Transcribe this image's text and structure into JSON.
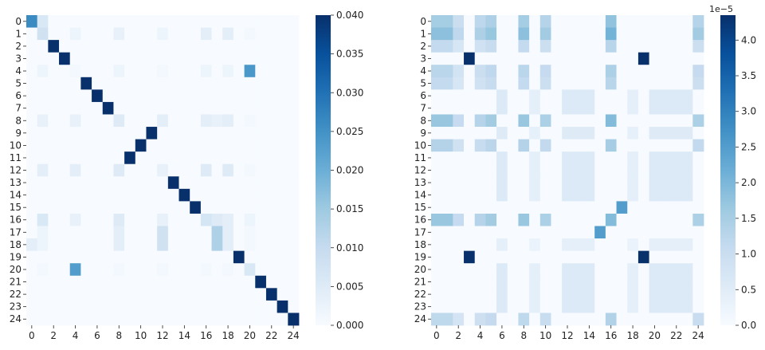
{
  "colors": {
    "low": "#f7fbff",
    "mid1": "#c6dbef",
    "mid2": "#6baed6",
    "mid3": "#2171b5",
    "high": "#08306b"
  },
  "chart_data": [
    {
      "type": "heatmap",
      "name": "left",
      "size": 25,
      "row_tick_labels": [
        "0",
        "1",
        "2",
        "3",
        "4",
        "5",
        "6",
        "7",
        "8",
        "9",
        "10",
        "11",
        "12",
        "13",
        "14",
        "15",
        "16",
        "17",
        "18",
        "19",
        "20",
        "21",
        "22",
        "23",
        "24"
      ],
      "col_tick_labels": [
        "0",
        "2",
        "4",
        "6",
        "8",
        "10",
        "12",
        "14",
        "16",
        "18",
        "20",
        "22",
        "24"
      ],
      "col_tick_indices": [
        0,
        2,
        4,
        6,
        8,
        10,
        12,
        14,
        16,
        18,
        20,
        22,
        24
      ],
      "vmin": 0,
      "vmax": 0.04,
      "colorbar_ticks": [
        0,
        0.005,
        0.01,
        0.015,
        0.02,
        0.025,
        0.03,
        0.035,
        0.04
      ],
      "colorbar_tick_labels": [
        "0.000",
        "0.005",
        "0.010",
        "0.015",
        "0.020",
        "0.025",
        "0.030",
        "0.035",
        "0.040"
      ],
      "colorbar_multiplier": "",
      "background": 0,
      "cells": [
        [
          0,
          0,
          0.026
        ],
        [
          0,
          1,
          0.006
        ],
        [
          1,
          1,
          0.008
        ],
        [
          1,
          4,
          0.002
        ],
        [
          1,
          8,
          0.003
        ],
        [
          1,
          12,
          0.002
        ],
        [
          1,
          16,
          0.004
        ],
        [
          1,
          18,
          0.004
        ],
        [
          1,
          20,
          0.001
        ],
        [
          2,
          2,
          0.04
        ],
        [
          3,
          3,
          0.04
        ],
        [
          4,
          1,
          0.002
        ],
        [
          4,
          4,
          0.001
        ],
        [
          4,
          8,
          0.002
        ],
        [
          4,
          12,
          0.001
        ],
        [
          4,
          16,
          0.002
        ],
        [
          4,
          18,
          0.002
        ],
        [
          4,
          20,
          0.024
        ],
        [
          5,
          5,
          0.04
        ],
        [
          6,
          6,
          0.04
        ],
        [
          7,
          7,
          0.04
        ],
        [
          8,
          1,
          0.003
        ],
        [
          8,
          4,
          0.003
        ],
        [
          8,
          8,
          0.005
        ],
        [
          8,
          12,
          0.004
        ],
        [
          8,
          16,
          0.004
        ],
        [
          8,
          17,
          0.003
        ],
        [
          8,
          18,
          0.004
        ],
        [
          8,
          20,
          0.001
        ],
        [
          9,
          11,
          0.04
        ],
        [
          10,
          10,
          0.04
        ],
        [
          11,
          9,
          0.04
        ],
        [
          12,
          1,
          0.004
        ],
        [
          12,
          4,
          0.004
        ],
        [
          12,
          8,
          0.005
        ],
        [
          12,
          12,
          0.003
        ],
        [
          12,
          16,
          0.005
        ],
        [
          12,
          18,
          0.005
        ],
        [
          12,
          20,
          0.001
        ],
        [
          13,
          13,
          0.04
        ],
        [
          14,
          14,
          0.04
        ],
        [
          15,
          15,
          0.04
        ],
        [
          16,
          1,
          0.006
        ],
        [
          16,
          4,
          0.003
        ],
        [
          16,
          8,
          0.005
        ],
        [
          16,
          12,
          0.003
        ],
        [
          16,
          16,
          0.007
        ],
        [
          16,
          17,
          0.005
        ],
        [
          16,
          18,
          0.004
        ],
        [
          16,
          20,
          0.002
        ],
        [
          17,
          1,
          0.002
        ],
        [
          17,
          8,
          0.004
        ],
        [
          17,
          12,
          0.008
        ],
        [
          17,
          17,
          0.013
        ],
        [
          17,
          18,
          0.004
        ],
        [
          17,
          20,
          0.001
        ],
        [
          18,
          0,
          0.004
        ],
        [
          18,
          1,
          0.002
        ],
        [
          18,
          8,
          0.004
        ],
        [
          18,
          12,
          0.008
        ],
        [
          18,
          17,
          0.013
        ],
        [
          18,
          18,
          0.004
        ],
        [
          18,
          20,
          0.001
        ],
        [
          19,
          19,
          0.04
        ],
        [
          20,
          1,
          0.001
        ],
        [
          20,
          4,
          0.023
        ],
        [
          20,
          8,
          0.001
        ],
        [
          20,
          12,
          0.001
        ],
        [
          20,
          16,
          0.001
        ],
        [
          20,
          18,
          0.001
        ],
        [
          20,
          20,
          0.006
        ],
        [
          21,
          21,
          0.04
        ],
        [
          22,
          22,
          0.04
        ],
        [
          23,
          23,
          0.04
        ],
        [
          24,
          24,
          0.04
        ]
      ]
    },
    {
      "type": "heatmap",
      "name": "right",
      "size": 25,
      "row_tick_labels": [
        "0",
        "1",
        "2",
        "3",
        "4",
        "5",
        "6",
        "7",
        "8",
        "9",
        "10",
        "11",
        "12",
        "13",
        "14",
        "15",
        "16",
        "17",
        "18",
        "19",
        "20",
        "21",
        "22",
        "23",
        "24"
      ],
      "col_tick_labels": [
        "0",
        "2",
        "4",
        "6",
        "8",
        "10",
        "12",
        "14",
        "16",
        "18",
        "20",
        "22",
        "24"
      ],
      "col_tick_indices": [
        0,
        2,
        4,
        6,
        8,
        10,
        12,
        14,
        16,
        18,
        20,
        22,
        24
      ],
      "vmin": 0,
      "vmax": 4.35,
      "colorbar_ticks": [
        0,
        0.5,
        1.0,
        1.5,
        2.0,
        2.5,
        3.0,
        3.5,
        4.0
      ],
      "colorbar_tick_labels": [
        "0.0",
        "0.5",
        "1.0",
        "1.5",
        "2.0",
        "2.5",
        "3.0",
        "3.5",
        "4.0"
      ],
      "colorbar_multiplier": "1e−5",
      "row_groups": [
        0,
        0,
        0,
        1,
        0,
        0,
        2,
        2,
        0,
        2,
        0,
        2,
        2,
        2,
        2,
        3,
        0,
        3,
        2,
        1,
        2,
        2,
        2,
        2,
        0
      ],
      "row_weights": [
        1.1,
        1.3,
        0.8,
        1,
        0.9,
        0.8,
        1,
        1,
        1.2,
        0.9,
        0.95,
        1,
        1,
        1,
        1,
        1,
        1.2,
        1,
        0.7,
        1,
        1,
        1,
        1,
        1,
        0.85
      ],
      "group_a_profile": [
        1.4,
        1.4,
        0.9,
        0,
        1.1,
        1.3,
        0,
        0,
        1.4,
        0,
        1.2,
        0,
        0,
        0,
        0,
        0,
        1.6,
        0,
        0,
        0,
        0,
        0,
        0,
        0,
        1.2
      ],
      "group_b_profile": [
        0,
        0,
        0,
        0,
        0,
        0,
        0.6,
        0,
        0,
        0.4,
        0,
        0,
        0.6,
        0.6,
        0.6,
        0,
        0,
        0,
        0.4,
        0,
        0.6,
        0.6,
        0.6,
        0.6,
        0
      ],
      "group_d_profile": [
        0,
        0,
        0,
        0,
        0,
        0,
        0,
        0,
        0,
        0,
        0,
        0,
        0,
        0,
        0,
        2.5,
        1.5,
        2.5,
        0,
        0,
        0,
        0,
        0,
        0,
        0
      ],
      "hot_cells": [
        [
          3,
          3,
          4.35
        ],
        [
          3,
          19,
          4.35
        ],
        [
          19,
          3,
          4.35
        ],
        [
          19,
          19,
          4.35
        ]
      ]
    }
  ]
}
